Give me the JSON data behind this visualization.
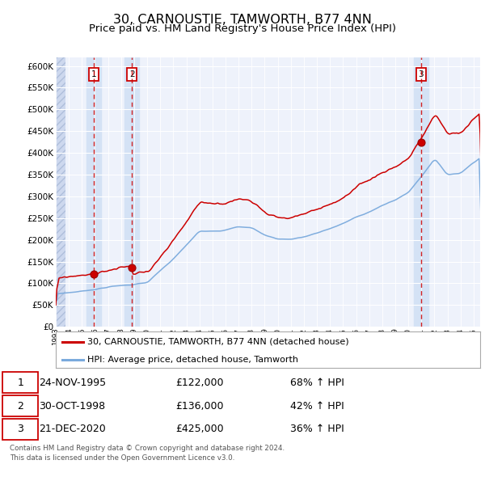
{
  "title": "30, CARNOUSTIE, TAMWORTH, B77 4NN",
  "subtitle": "Price paid vs. HM Land Registry's House Price Index (HPI)",
  "title_fontsize": 11.5,
  "subtitle_fontsize": 9.5,
  "bg_color": "#ffffff",
  "plot_bg_color": "#eef2fb",
  "grid_color": "#ffffff",
  "red_line_color": "#cc0000",
  "blue_line_color": "#7aaadd",
  "shade_color": "#d4e2f5",
  "ylim": [
    0,
    620000
  ],
  "xmin": 1993.0,
  "xmax": 2025.5,
  "sale_dates": [
    1995.92,
    1998.83,
    2020.97
  ],
  "sale_prices": [
    122000,
    136000,
    425000
  ],
  "sale_labels": [
    {
      "label": "1",
      "date": "24-NOV-1995",
      "price": "£122,000",
      "pct": "68% ↑ HPI"
    },
    {
      "label": "2",
      "date": "30-OCT-1998",
      "price": "£136,000",
      "pct": "42% ↑ HPI"
    },
    {
      "label": "3",
      "date": "21-DEC-2020",
      "price": "£425,000",
      "pct": "36% ↑ HPI"
    }
  ],
  "legend_line1": "30, CARNOUSTIE, TAMWORTH, B77 4NN (detached house)",
  "legend_line2": "HPI: Average price, detached house, Tamworth",
  "footer": "Contains HM Land Registry data © Crown copyright and database right 2024.\nThis data is licensed under the Open Government Licence v3.0."
}
